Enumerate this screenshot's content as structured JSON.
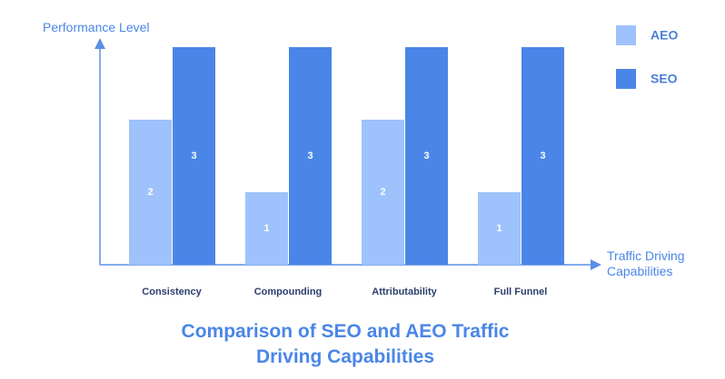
{
  "chart_data": {
    "type": "bar",
    "title": "Comparison of SEO and AEO Traffic Driving Capabilities",
    "y_label": "Performance Level",
    "x_label": "Traffic Driving Capabilities",
    "categories": [
      "Consistency",
      "Compounding",
      "Attributability",
      "Full Funnel"
    ],
    "series": [
      {
        "name": "AEO",
        "color": "#9ec2fb",
        "values": [
          2,
          1,
          2,
          1
        ]
      },
      {
        "name": "SEO",
        "color": "#4a86e8",
        "values": [
          3,
          3,
          3,
          3
        ]
      }
    ],
    "ylim": [
      0,
      3
    ],
    "legend": "top-right"
  }
}
